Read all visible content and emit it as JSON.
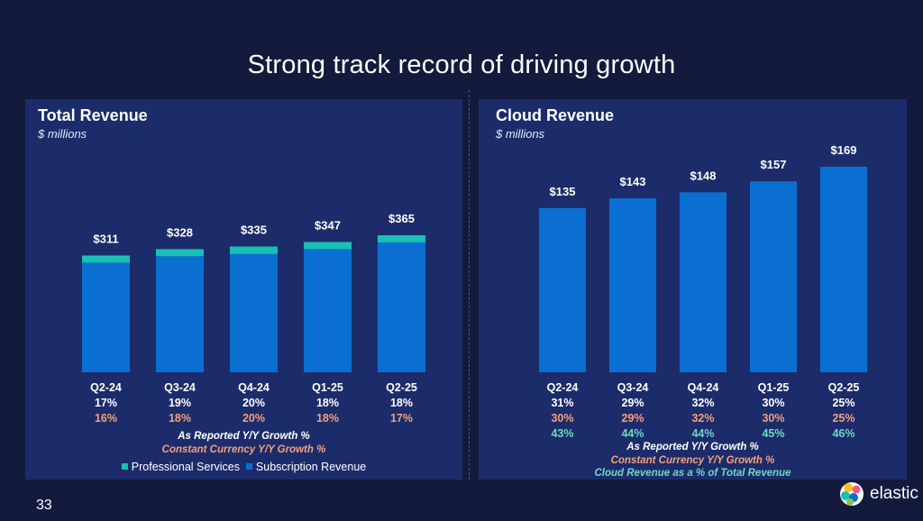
{
  "slide": {
    "title": "Strong track record of driving growth",
    "page_number": "33",
    "logo_text": "elastic"
  },
  "colors": {
    "subscription": "#0b6fd2",
    "professional_services": "#17c1b4",
    "reported_growth": "#ffffff",
    "constant_currency": "#f4a07a",
    "cloud_share": "#6fd6c3"
  },
  "left": {
    "title": "Total Revenue",
    "subtitle": "$ millions",
    "legend_reported": "As Reported Y/Y Growth %",
    "legend_cc": "Constant Currency Y/Y Growth %",
    "legend_ps": "Professional Services",
    "legend_sub": "Subscription Revenue"
  },
  "right": {
    "title": "Cloud Revenue",
    "subtitle": "$ millions",
    "legend_reported": "As Reported Y/Y Growth %",
    "legend_cc": "Constant Currency Y/Y Growth %",
    "legend_share": "Cloud Revenue as a % of Total Revenue"
  },
  "chart_data": [
    {
      "type": "bar",
      "stacked": true,
      "title": "Total Revenue",
      "subtitle": "$ millions",
      "categories": [
        "Q2-24",
        "Q3-24",
        "Q4-24",
        "Q1-25",
        "Q2-25"
      ],
      "totals": [
        311,
        328,
        335,
        347,
        365
      ],
      "total_labels": [
        "$311",
        "$328",
        "$335",
        "$347",
        "$365"
      ],
      "series": [
        {
          "name": "Subscription Revenue",
          "values": [
            292,
            309,
            315,
            328,
            346
          ]
        },
        {
          "name": "Professional Services",
          "values": [
            19,
            19,
            20,
            19,
            19
          ]
        }
      ],
      "growth_reported": [
        "17%",
        "19%",
        "20%",
        "18%",
        "18%"
      ],
      "growth_cc": [
        "16%",
        "18%",
        "20%",
        "18%",
        "17%"
      ],
      "ylim": [
        0,
        365
      ]
    },
    {
      "type": "bar",
      "title": "Cloud Revenue",
      "subtitle": "$ millions",
      "categories": [
        "Q2-24",
        "Q3-24",
        "Q4-24",
        "Q1-25",
        "Q2-25"
      ],
      "values": [
        135,
        143,
        148,
        157,
        169
      ],
      "value_labels": [
        "$135",
        "$143",
        "$148",
        "$157",
        "$169"
      ],
      "growth_reported": [
        "31%",
        "29%",
        "32%",
        "30%",
        "25%"
      ],
      "growth_cc": [
        "30%",
        "29%",
        "32%",
        "30%",
        "25%"
      ],
      "pct_of_total": [
        "43%",
        "44%",
        "44%",
        "45%",
        "46%"
      ],
      "ylim": [
        0,
        169
      ]
    }
  ]
}
